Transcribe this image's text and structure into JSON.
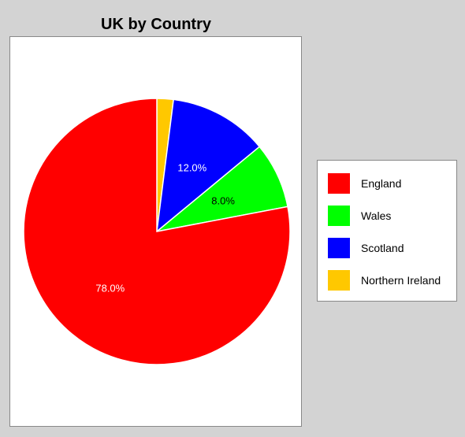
{
  "chart_data": {
    "type": "pie",
    "title": "UK by Country",
    "slices": [
      {
        "name": "England",
        "value": 78.0,
        "label": "78.0%",
        "color": "#ff0000",
        "label_color": "#ffffff"
      },
      {
        "name": "Wales",
        "value": 8.0,
        "label": "8.0%",
        "color": "#00ff00",
        "label_color": "#000000"
      },
      {
        "name": "Scotland",
        "value": 12.0,
        "label": "12.0%",
        "color": "#0000ff",
        "label_color": "#ffffff"
      },
      {
        "name": "Northern Ireland",
        "value": 2.0,
        "label": "",
        "color": "#ffc800",
        "label_color": "#000000"
      }
    ],
    "legend": {
      "position": "right",
      "entries": [
        "England",
        "Wales",
        "Scotland",
        "Northern Ireland"
      ]
    },
    "start_angle": "top",
    "direction": "clockwise",
    "slice_order": [
      "Northern Ireland",
      "Scotland",
      "Wales",
      "England"
    ]
  }
}
